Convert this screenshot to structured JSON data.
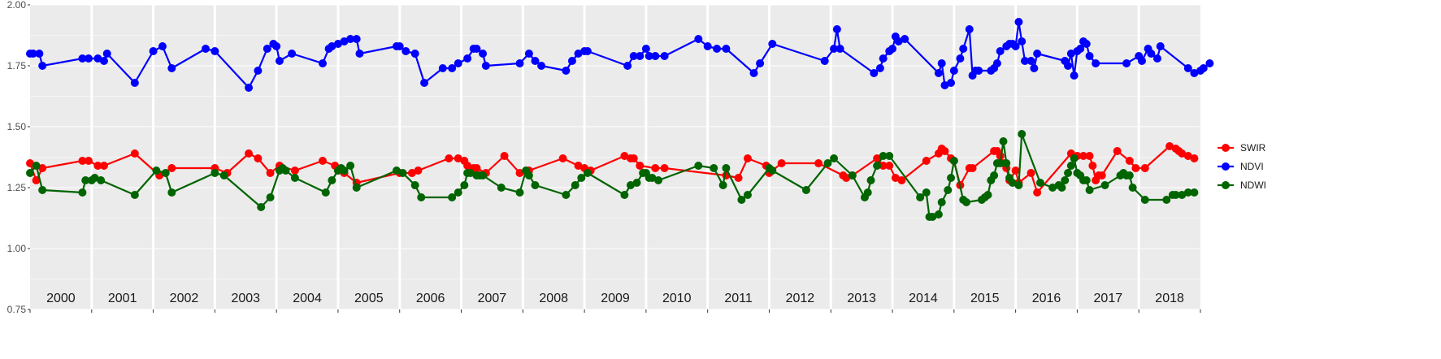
{
  "chart_data": {
    "type": "line",
    "title": "",
    "xlabel": "",
    "ylabel": "",
    "xlim": [
      2000.0,
      2019.0
    ],
    "ylim": [
      0.75,
      2.0
    ],
    "yticks": [
      0.75,
      1.0,
      1.25,
      1.5,
      1.75,
      2.0
    ],
    "ytick_labels": [
      "0.75",
      "1.00",
      "1.25",
      "1.50",
      "1.75",
      "2.00"
    ],
    "year_labels": [
      "2000",
      "2001",
      "2002",
      "2003",
      "2004",
      "2005",
      "2006",
      "2007",
      "2008",
      "2009",
      "2010",
      "2011",
      "2012",
      "2013",
      "2014",
      "2015",
      "2016",
      "2017",
      "2018"
    ],
    "background": "#ebebeb",
    "grid": true,
    "legend_position": "right",
    "series": [
      {
        "name": "SWIR",
        "color": "#ff0000",
        "x": [
          2000.0,
          2000.1,
          2000.2,
          2000.85,
          2000.95,
          2001.1,
          2001.2,
          2001.7,
          2002.1,
          2002.3,
          2003.0,
          2003.2,
          2003.55,
          2003.7,
          2003.9,
          2004.05,
          2004.3,
          2004.75,
          2004.95,
          2005.0,
          2005.1,
          2005.3,
          2006.0,
          2006.2,
          2006.3,
          2006.8,
          2006.95,
          2007.05,
          2007.1,
          2007.2,
          2007.25,
          2007.4,
          2007.7,
          2007.95,
          2008.1,
          2008.65,
          2008.9,
          2009.0,
          2009.1,
          2009.65,
          2009.75,
          2009.8,
          2009.9,
          2010.15,
          2010.3,
          2011.3,
          2011.5,
          2011.65,
          2011.95,
          2012.0,
          2012.05,
          2012.2,
          2012.8,
          2013.2,
          2013.25,
          2013.35,
          2013.75,
          2013.85,
          2013.95,
          2014.05,
          2014.15,
          2014.55,
          2014.75,
          2014.8,
          2014.85,
          2014.95,
          2015.0,
          2015.1,
          2015.25,
          2015.3,
          2015.65,
          2015.7,
          2015.75,
          2015.8,
          2015.85,
          2015.9,
          2016.0,
          2016.05,
          2016.25,
          2016.35,
          2016.9,
          2017.0,
          2017.1,
          2017.2,
          2017.25,
          2017.3,
          2017.35,
          2017.4,
          2017.65,
          2017.85,
          2017.95,
          2018.1,
          2018.5,
          2018.6,
          2018.65,
          2018.7,
          2018.8,
          2018.9
        ],
        "y": [
          1.35,
          1.28,
          1.33,
          1.36,
          1.36,
          1.34,
          1.34,
          1.39,
          1.3,
          1.33,
          1.33,
          1.31,
          1.39,
          1.37,
          1.31,
          1.34,
          1.32,
          1.36,
          1.34,
          1.32,
          1.31,
          1.27,
          1.31,
          1.31,
          1.32,
          1.37,
          1.37,
          1.36,
          1.34,
          1.33,
          1.33,
          1.31,
          1.38,
          1.31,
          1.32,
          1.37,
          1.34,
          1.33,
          1.32,
          1.38,
          1.37,
          1.37,
          1.34,
          1.33,
          1.33,
          1.3,
          1.29,
          1.37,
          1.34,
          1.31,
          1.32,
          1.35,
          1.35,
          1.3,
          1.29,
          1.3,
          1.37,
          1.34,
          1.34,
          1.29,
          1.28,
          1.36,
          1.39,
          1.41,
          1.4,
          1.37,
          1.36,
          1.26,
          1.33,
          1.33,
          1.4,
          1.4,
          1.38,
          1.35,
          1.33,
          1.28,
          1.32,
          1.27,
          1.31,
          1.23,
          1.39,
          1.38,
          1.38,
          1.38,
          1.34,
          1.28,
          1.3,
          1.3,
          1.4,
          1.36,
          1.33,
          1.33,
          1.42,
          1.41,
          1.4,
          1.39,
          1.38,
          1.37
        ]
      },
      {
        "name": "NDVI",
        "color": "#0000ff",
        "x": [
          2000.0,
          2000.05,
          2000.15,
          2000.2,
          2000.85,
          2000.95,
          2001.1,
          2001.2,
          2001.25,
          2001.7,
          2002.0,
          2002.15,
          2002.3,
          2002.85,
          2003.0,
          2003.55,
          2003.7,
          2003.85,
          2003.95,
          2004.0,
          2004.05,
          2004.25,
          2004.75,
          2004.85,
          2004.9,
          2005.0,
          2005.1,
          2005.2,
          2005.3,
          2005.35,
          2005.95,
          2006.0,
          2006.1,
          2006.25,
          2006.4,
          2006.7,
          2006.85,
          2006.95,
          2007.1,
          2007.2,
          2007.25,
          2007.35,
          2007.4,
          2007.95,
          2008.1,
          2008.2,
          2008.3,
          2008.7,
          2008.8,
          2008.9,
          2009.0,
          2009.05,
          2009.7,
          2009.8,
          2009.9,
          2010.0,
          2010.05,
          2010.15,
          2010.3,
          2010.85,
          2011.0,
          2011.15,
          2011.3,
          2011.75,
          2011.85,
          2012.05,
          2012.9,
          2013.05,
          2013.1,
          2013.15,
          2013.7,
          2013.8,
          2013.85,
          2013.95,
          2014.0,
          2014.05,
          2014.1,
          2014.2,
          2014.75,
          2014.8,
          2014.85,
          2014.95,
          2015.0,
          2015.1,
          2015.15,
          2015.25,
          2015.3,
          2015.35,
          2015.4,
          2015.6,
          2015.65,
          2015.7,
          2015.75,
          2015.85,
          2015.9,
          2015.95,
          2016.0,
          2016.05,
          2016.1,
          2016.15,
          2016.25,
          2016.3,
          2016.35,
          2016.8,
          2016.85,
          2016.9,
          2016.95,
          2017.0,
          2017.05,
          2017.1,
          2017.15,
          2017.2,
          2017.3,
          2017.8,
          2018.0,
          2018.05,
          2018.15,
          2018.2,
          2018.3,
          2018.35,
          2018.8,
          2018.9,
          2019.0,
          2019.05,
          2019.15
        ],
        "y": [
          1.8,
          1.8,
          1.8,
          1.75,
          1.78,
          1.78,
          1.78,
          1.77,
          1.8,
          1.68,
          1.81,
          1.83,
          1.74,
          1.82,
          1.81,
          1.66,
          1.73,
          1.82,
          1.84,
          1.83,
          1.77,
          1.8,
          1.76,
          1.82,
          1.83,
          1.84,
          1.85,
          1.86,
          1.86,
          1.8,
          1.83,
          1.83,
          1.81,
          1.8,
          1.68,
          1.74,
          1.74,
          1.76,
          1.78,
          1.82,
          1.82,
          1.8,
          1.75,
          1.76,
          1.8,
          1.77,
          1.75,
          1.73,
          1.77,
          1.8,
          1.81,
          1.81,
          1.75,
          1.79,
          1.79,
          1.82,
          1.79,
          1.79,
          1.79,
          1.86,
          1.83,
          1.82,
          1.82,
          1.72,
          1.76,
          1.84,
          1.77,
          1.82,
          1.9,
          1.82,
          1.72,
          1.74,
          1.78,
          1.81,
          1.82,
          1.87,
          1.85,
          1.86,
          1.72,
          1.76,
          1.67,
          1.68,
          1.73,
          1.78,
          1.82,
          1.9,
          1.71,
          1.73,
          1.73,
          1.73,
          1.74,
          1.76,
          1.81,
          1.83,
          1.84,
          1.84,
          1.83,
          1.93,
          1.85,
          1.77,
          1.77,
          1.74,
          1.8,
          1.77,
          1.75,
          1.8,
          1.71,
          1.81,
          1.82,
          1.85,
          1.84,
          1.79,
          1.76,
          1.76,
          1.79,
          1.77,
          1.82,
          1.8,
          1.78,
          1.83,
          1.74,
          1.72,
          1.73,
          1.74,
          1.76
        ]
      },
      {
        "name": "NDWI",
        "color": "#006400",
        "x": [
          2000.0,
          2000.1,
          2000.2,
          2000.85,
          2000.9,
          2001.0,
          2001.05,
          2001.15,
          2001.7,
          2002.05,
          2002.2,
          2002.3,
          2003.0,
          2003.15,
          2003.75,
          2003.9,
          2004.05,
          2004.1,
          2004.15,
          2004.3,
          2004.8,
          2004.9,
          2005.0,
          2005.05,
          2005.1,
          2005.2,
          2005.3,
          2005.95,
          2006.05,
          2006.25,
          2006.35,
          2006.85,
          2006.95,
          2007.05,
          2007.1,
          2007.15,
          2007.25,
          2007.3,
          2007.35,
          2007.65,
          2007.95,
          2008.05,
          2008.1,
          2008.2,
          2008.7,
          2008.85,
          2008.95,
          2009.05,
          2009.65,
          2009.75,
          2009.85,
          2009.95,
          2010.0,
          2010.05,
          2010.1,
          2010.2,
          2010.85,
          2011.1,
          2011.25,
          2011.3,
          2011.55,
          2011.65,
          2012.0,
          2012.05,
          2012.6,
          2012.95,
          2013.05,
          2013.35,
          2013.55,
          2013.6,
          2013.65,
          2013.75,
          2013.85,
          2013.95,
          2014.45,
          2014.55,
          2014.6,
          2014.65,
          2014.75,
          2014.8,
          2014.9,
          2014.95,
          2015.0,
          2015.15,
          2015.2,
          2015.45,
          2015.5,
          2015.55,
          2015.6,
          2015.65,
          2015.7,
          2015.75,
          2015.8,
          2015.85,
          2015.9,
          2015.95,
          2016.05,
          2016.1,
          2016.4,
          2016.6,
          2016.7,
          2016.75,
          2016.8,
          2016.85,
          2016.9,
          2016.95,
          2017.0,
          2017.05,
          2017.1,
          2017.15,
          2017.2,
          2017.45,
          2017.7,
          2017.75,
          2017.8,
          2017.85,
          2017.9,
          2018.1,
          2018.45,
          2018.55,
          2018.6,
          2018.7,
          2018.8,
          2018.9
        ],
        "y": [
          1.31,
          1.34,
          1.24,
          1.23,
          1.28,
          1.28,
          1.29,
          1.28,
          1.22,
          1.32,
          1.31,
          1.23,
          1.31,
          1.3,
          1.17,
          1.21,
          1.32,
          1.33,
          1.32,
          1.29,
          1.23,
          1.28,
          1.32,
          1.33,
          1.32,
          1.34,
          1.25,
          1.32,
          1.31,
          1.26,
          1.21,
          1.21,
          1.23,
          1.26,
          1.31,
          1.31,
          1.3,
          1.3,
          1.3,
          1.25,
          1.23,
          1.32,
          1.3,
          1.26,
          1.22,
          1.26,
          1.29,
          1.31,
          1.22,
          1.26,
          1.27,
          1.31,
          1.31,
          1.29,
          1.29,
          1.28,
          1.34,
          1.33,
          1.26,
          1.33,
          1.2,
          1.22,
          1.33,
          1.32,
          1.24,
          1.35,
          1.37,
          1.3,
          1.21,
          1.23,
          1.28,
          1.34,
          1.38,
          1.38,
          1.21,
          1.23,
          1.13,
          1.13,
          1.14,
          1.19,
          1.24,
          1.29,
          1.36,
          1.2,
          1.19,
          1.2,
          1.21,
          1.22,
          1.28,
          1.3,
          1.35,
          1.35,
          1.44,
          1.35,
          1.29,
          1.27,
          1.26,
          1.47,
          1.27,
          1.25,
          1.26,
          1.25,
          1.28,
          1.31,
          1.34,
          1.37,
          1.31,
          1.3,
          1.28,
          1.28,
          1.24,
          1.26,
          1.3,
          1.31,
          1.3,
          1.3,
          1.25,
          1.2,
          1.2,
          1.22,
          1.22,
          1.22,
          1.23,
          1.23
        ]
      }
    ]
  }
}
